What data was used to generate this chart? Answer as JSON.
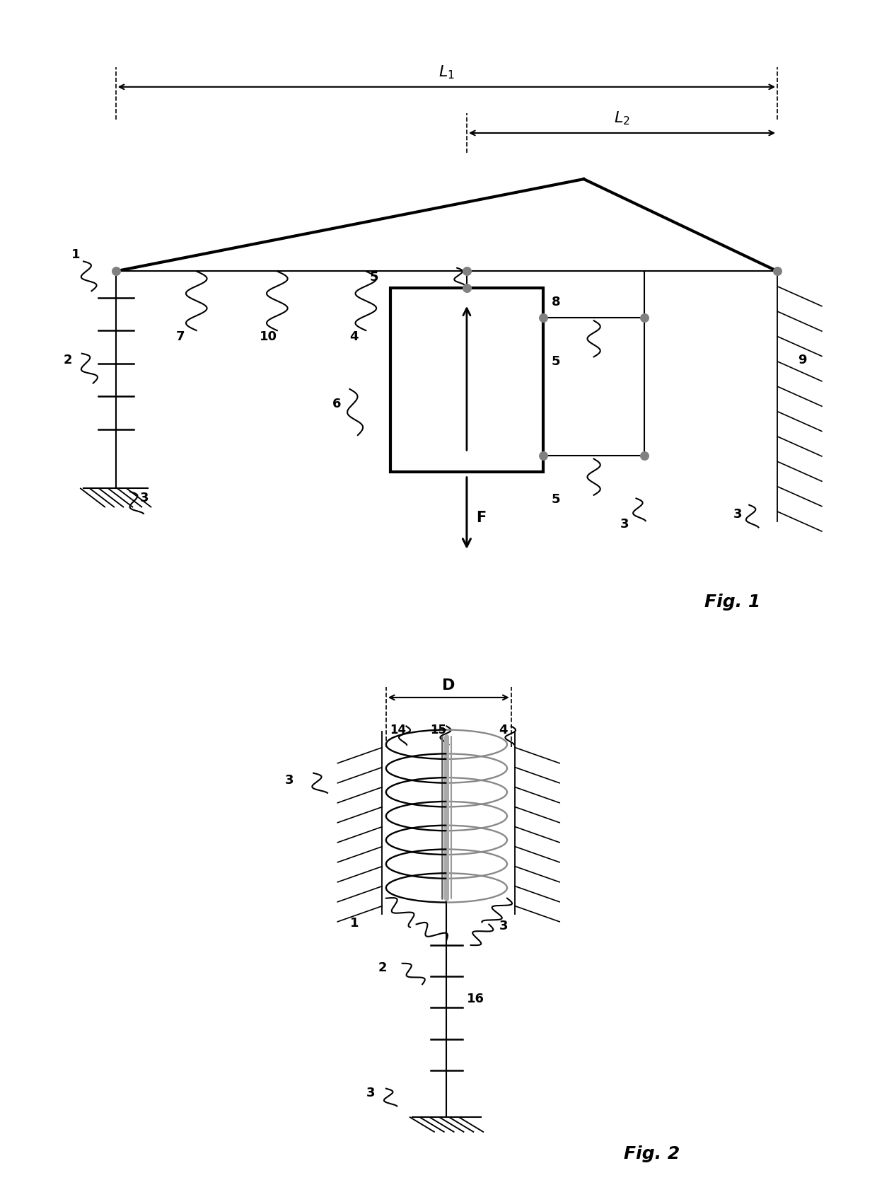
{
  "fig_width": 12.4,
  "fig_height": 16.75,
  "bg": "#ffffff",
  "lc": "#000000",
  "gc": "#808080",
  "lw_main": 3.0,
  "lw_med": 2.0,
  "lw_thin": 1.5,
  "lw_hatch": 1.2,
  "dot_size": 70,
  "label_fs": 13,
  "dim_fs": 16,
  "fig_label_fs": 18,
  "fig1_label": "Fig. 1",
  "fig2_label": "Fig. 2"
}
